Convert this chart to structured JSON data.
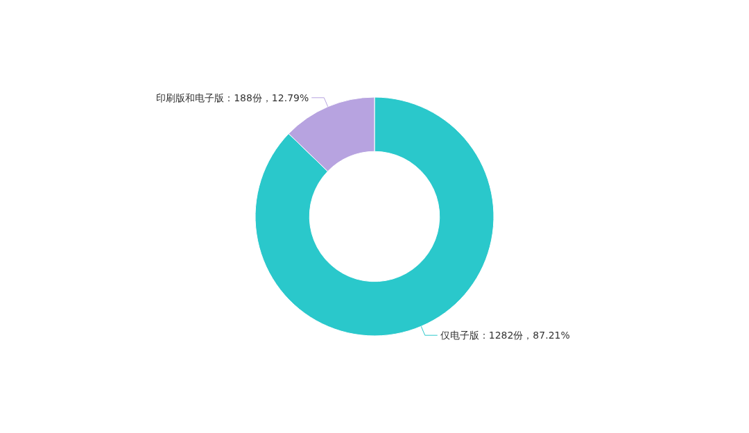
{
  "chart_data": {
    "type": "donut",
    "categories": [
      "仅电子版",
      "印刷版和电子版"
    ],
    "values": [
      1282,
      188
    ],
    "value_labels": [
      "1282份，87.21%",
      "188份，12.79%"
    ],
    "colors": [
      "#2ac8cb",
      "#b7a3e0"
    ]
  }
}
